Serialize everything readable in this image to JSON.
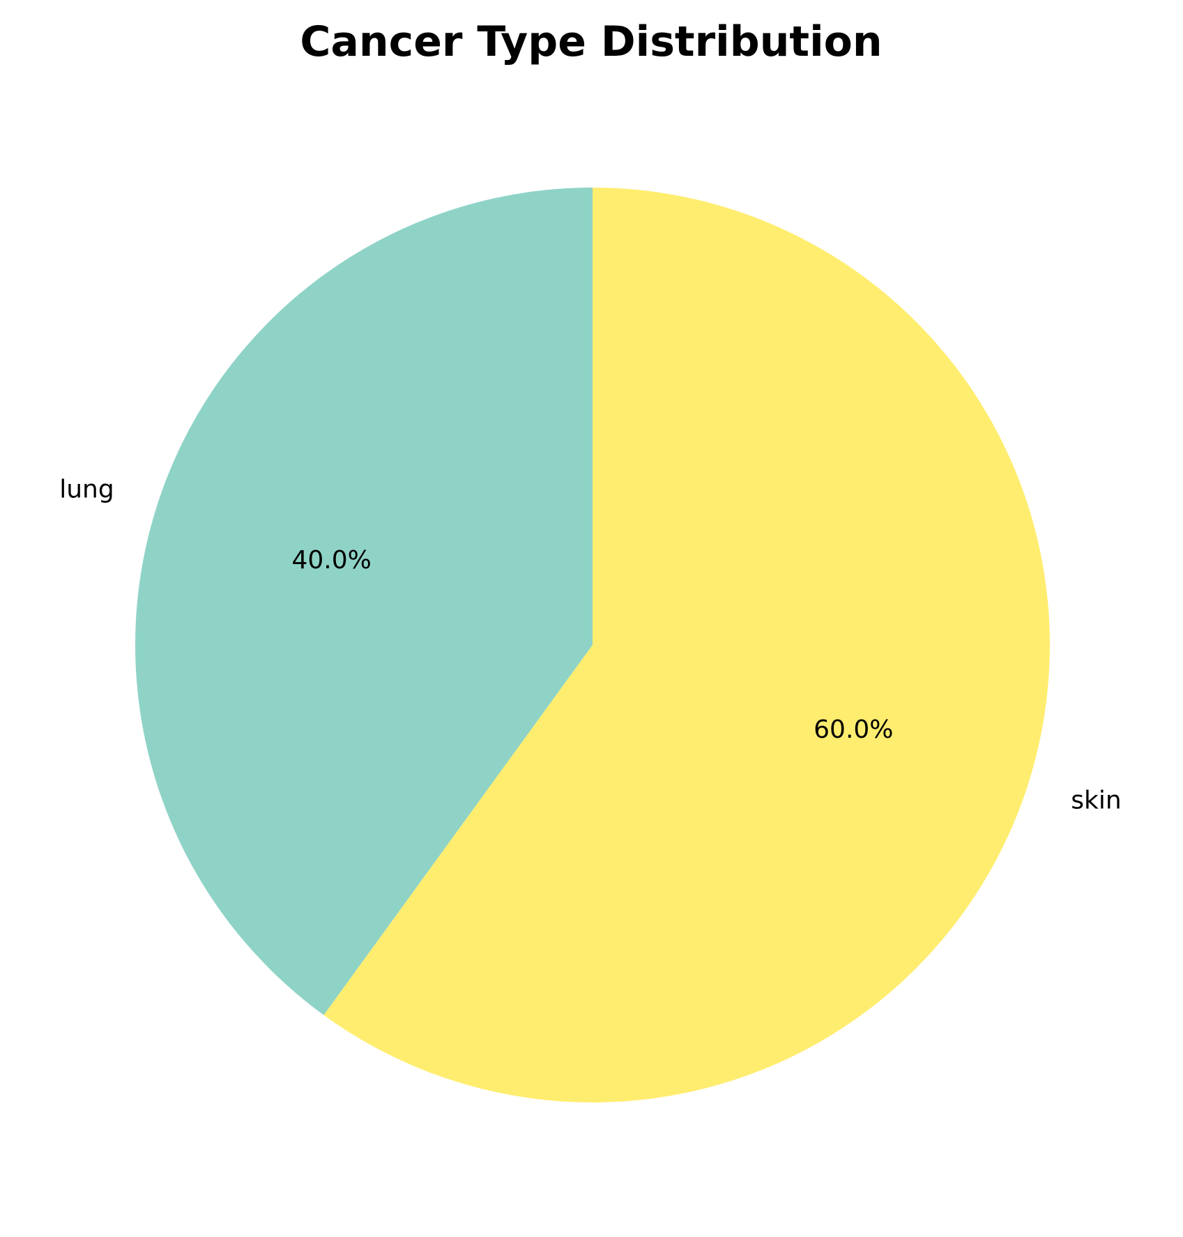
{
  "chart_data": {
    "type": "pie",
    "title": "Cancer Type Distribution",
    "slices": [
      {
        "label": "lung",
        "value": 40.0,
        "pct_label": "40.0%",
        "color": "#8fd3c7"
      },
      {
        "label": "skin",
        "value": 60.0,
        "pct_label": "60.0%",
        "color": "#ffed6f"
      }
    ],
    "start_angle_deg": 90,
    "direction": "counterclockwise",
    "legend": "none"
  }
}
